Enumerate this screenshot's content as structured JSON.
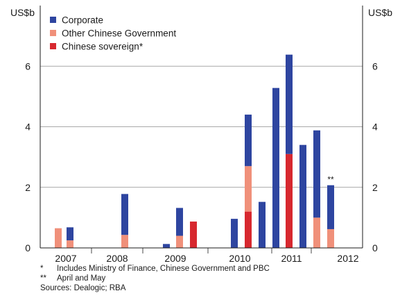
{
  "chart_data": {
    "type": "bar",
    "stacked": true,
    "y_unit_left": "US$b",
    "y_unit_right": "US$b",
    "ylim": [
      0,
      8
    ],
    "y_ticks": [
      0,
      2,
      4,
      6
    ],
    "grid": "horizontal",
    "legend_placement": "top-left",
    "year_labels": [
      "2007",
      "2008",
      "2009",
      "2010",
      "2011",
      "2012"
    ],
    "series": [
      {
        "name": "Chinese sovereign*",
        "color": "#d7282f"
      },
      {
        "name": "Other Chinese Government",
        "color": "#f0907a"
      },
      {
        "name": "Corporate",
        "color": "#2e45a0"
      }
    ],
    "periods": [
      {
        "year": "2007",
        "period": "H1",
        "values": [
          0,
          0.65,
          0
        ]
      },
      {
        "year": "2007",
        "period": "H2",
        "values": [
          0,
          0.25,
          0.43
        ]
      },
      {
        "year": "2008",
        "period": "H1",
        "values": [
          0,
          0,
          0
        ]
      },
      {
        "year": "2008",
        "period": "H2",
        "values": [
          0,
          0.43,
          1.35
        ]
      },
      {
        "year": "2009",
        "period": "H1",
        "values": [
          0,
          0,
          0.13
        ]
      },
      {
        "year": "2009",
        "period": "H2",
        "values": [
          0,
          0.4,
          0.92
        ]
      },
      {
        "year": "2009",
        "period": "H3",
        "values": [
          0.87,
          0,
          0
        ]
      },
      {
        "year": "2010",
        "period": "H1",
        "values": [
          0,
          0,
          0.96
        ]
      },
      {
        "year": "2010",
        "period": "H2",
        "values": [
          1.2,
          1.5,
          1.7
        ]
      },
      {
        "year": "2010",
        "period": "H3",
        "values": [
          0,
          0,
          1.52
        ]
      },
      {
        "year": "2011",
        "period": "H1",
        "values": [
          0,
          0,
          5.28
        ]
      },
      {
        "year": "2011",
        "period": "H2",
        "values": [
          3.1,
          0,
          3.28
        ]
      },
      {
        "year": "2011",
        "period": "H3",
        "values": [
          0,
          0,
          3.4
        ]
      },
      {
        "year": "2011",
        "period": "H4",
        "values": [
          0,
          1.0,
          2.88
        ]
      },
      {
        "year": "2012",
        "period": "Apr-May",
        "values": [
          0,
          0.62,
          1.45
        ],
        "annotation": "**"
      }
    ]
  },
  "notes": [
    {
      "mark": "*",
      "text": "Includes Ministry of Finance, Chinese Government and PBC"
    },
    {
      "mark": "**",
      "text": "April and May"
    },
    {
      "mark": "",
      "text": "Sources: Dealogic; RBA"
    }
  ]
}
